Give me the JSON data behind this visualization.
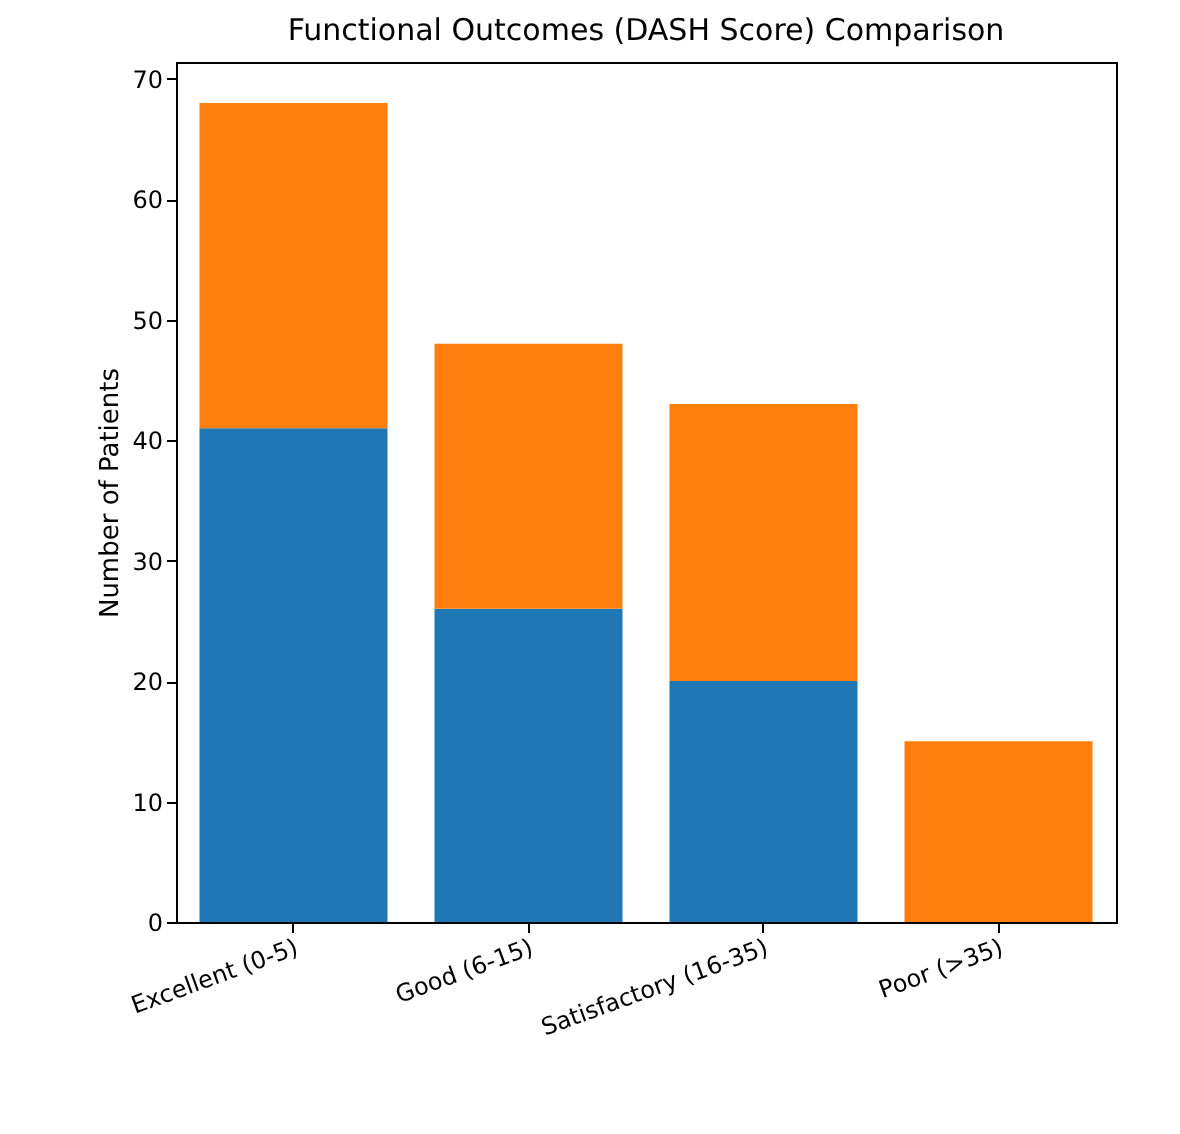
{
  "chart_data": {
    "type": "bar",
    "title": "Functional Outcomes (DASH Score) Comparison",
    "ylabel": "Number of Patients",
    "categories": [
      "Excellent (0-5)",
      "Good (6-15)",
      "Satisfactory (16-35)",
      "Poor (>35)"
    ],
    "stacked": true,
    "series": [
      {
        "color": "#1f77b4",
        "values": [
          41,
          26,
          20,
          0
        ]
      },
      {
        "color": "#ff7f0e",
        "values": [
          27,
          22,
          23,
          15
        ]
      }
    ],
    "ylim": [
      0,
      71.4
    ],
    "yticks": [
      0,
      10,
      20,
      30,
      40,
      50,
      60,
      70
    ],
    "grid": false,
    "legend": false
  }
}
